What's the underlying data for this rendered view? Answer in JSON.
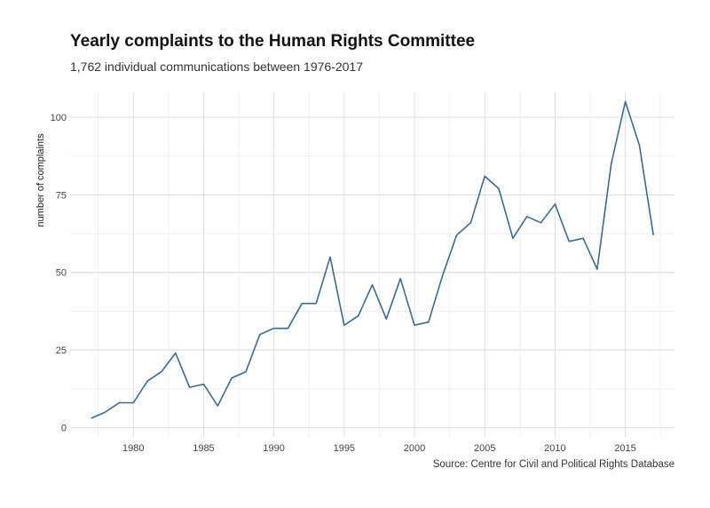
{
  "title": "Yearly complaints to the Human Rights Committee",
  "subtitle": "1,762 individual communications between 1976-2017",
  "caption": "Source: Centre for Civil and Political Rights Database",
  "chart_data": {
    "type": "line",
    "title": "Yearly complaints to the Human Rights Committee",
    "subtitle": "1,762 individual communications between 1976-2017",
    "xlabel": "",
    "ylabel": "number of complaints",
    "xlim": [
      1975.5,
      2018.5
    ],
    "ylim": [
      -3,
      108
    ],
    "x_ticks": [
      1980,
      1985,
      1990,
      1995,
      2000,
      2005,
      2010,
      2015
    ],
    "y_ticks": [
      0,
      25,
      50,
      75,
      100
    ],
    "grid": true,
    "line_color": "#3a6a96",
    "series": [
      {
        "x": [
          1977,
          1978,
          1979,
          1980,
          1981,
          1982,
          1983,
          1984,
          1985,
          1986,
          1987,
          1988,
          1989,
          1990,
          1991,
          1992,
          1993,
          1994,
          1995,
          1996,
          1997,
          1998,
          1999,
          2000,
          2001,
          2002,
          2003,
          2004,
          2005,
          2006,
          2007,
          2008,
          2009,
          2010,
          2011,
          2012,
          2013,
          2014,
          2015,
          2016,
          2017
        ],
        "values": [
          3,
          5,
          8,
          8,
          15,
          18,
          24,
          13,
          14,
          7,
          16,
          18,
          30,
          32,
          32,
          40,
          40,
          55,
          33,
          36,
          46,
          35,
          48,
          33,
          34,
          49,
          62,
          66,
          81,
          77,
          61,
          68,
          66,
          72,
          60,
          61,
          51,
          85,
          105,
          91,
          62
        ]
      }
    ]
  }
}
